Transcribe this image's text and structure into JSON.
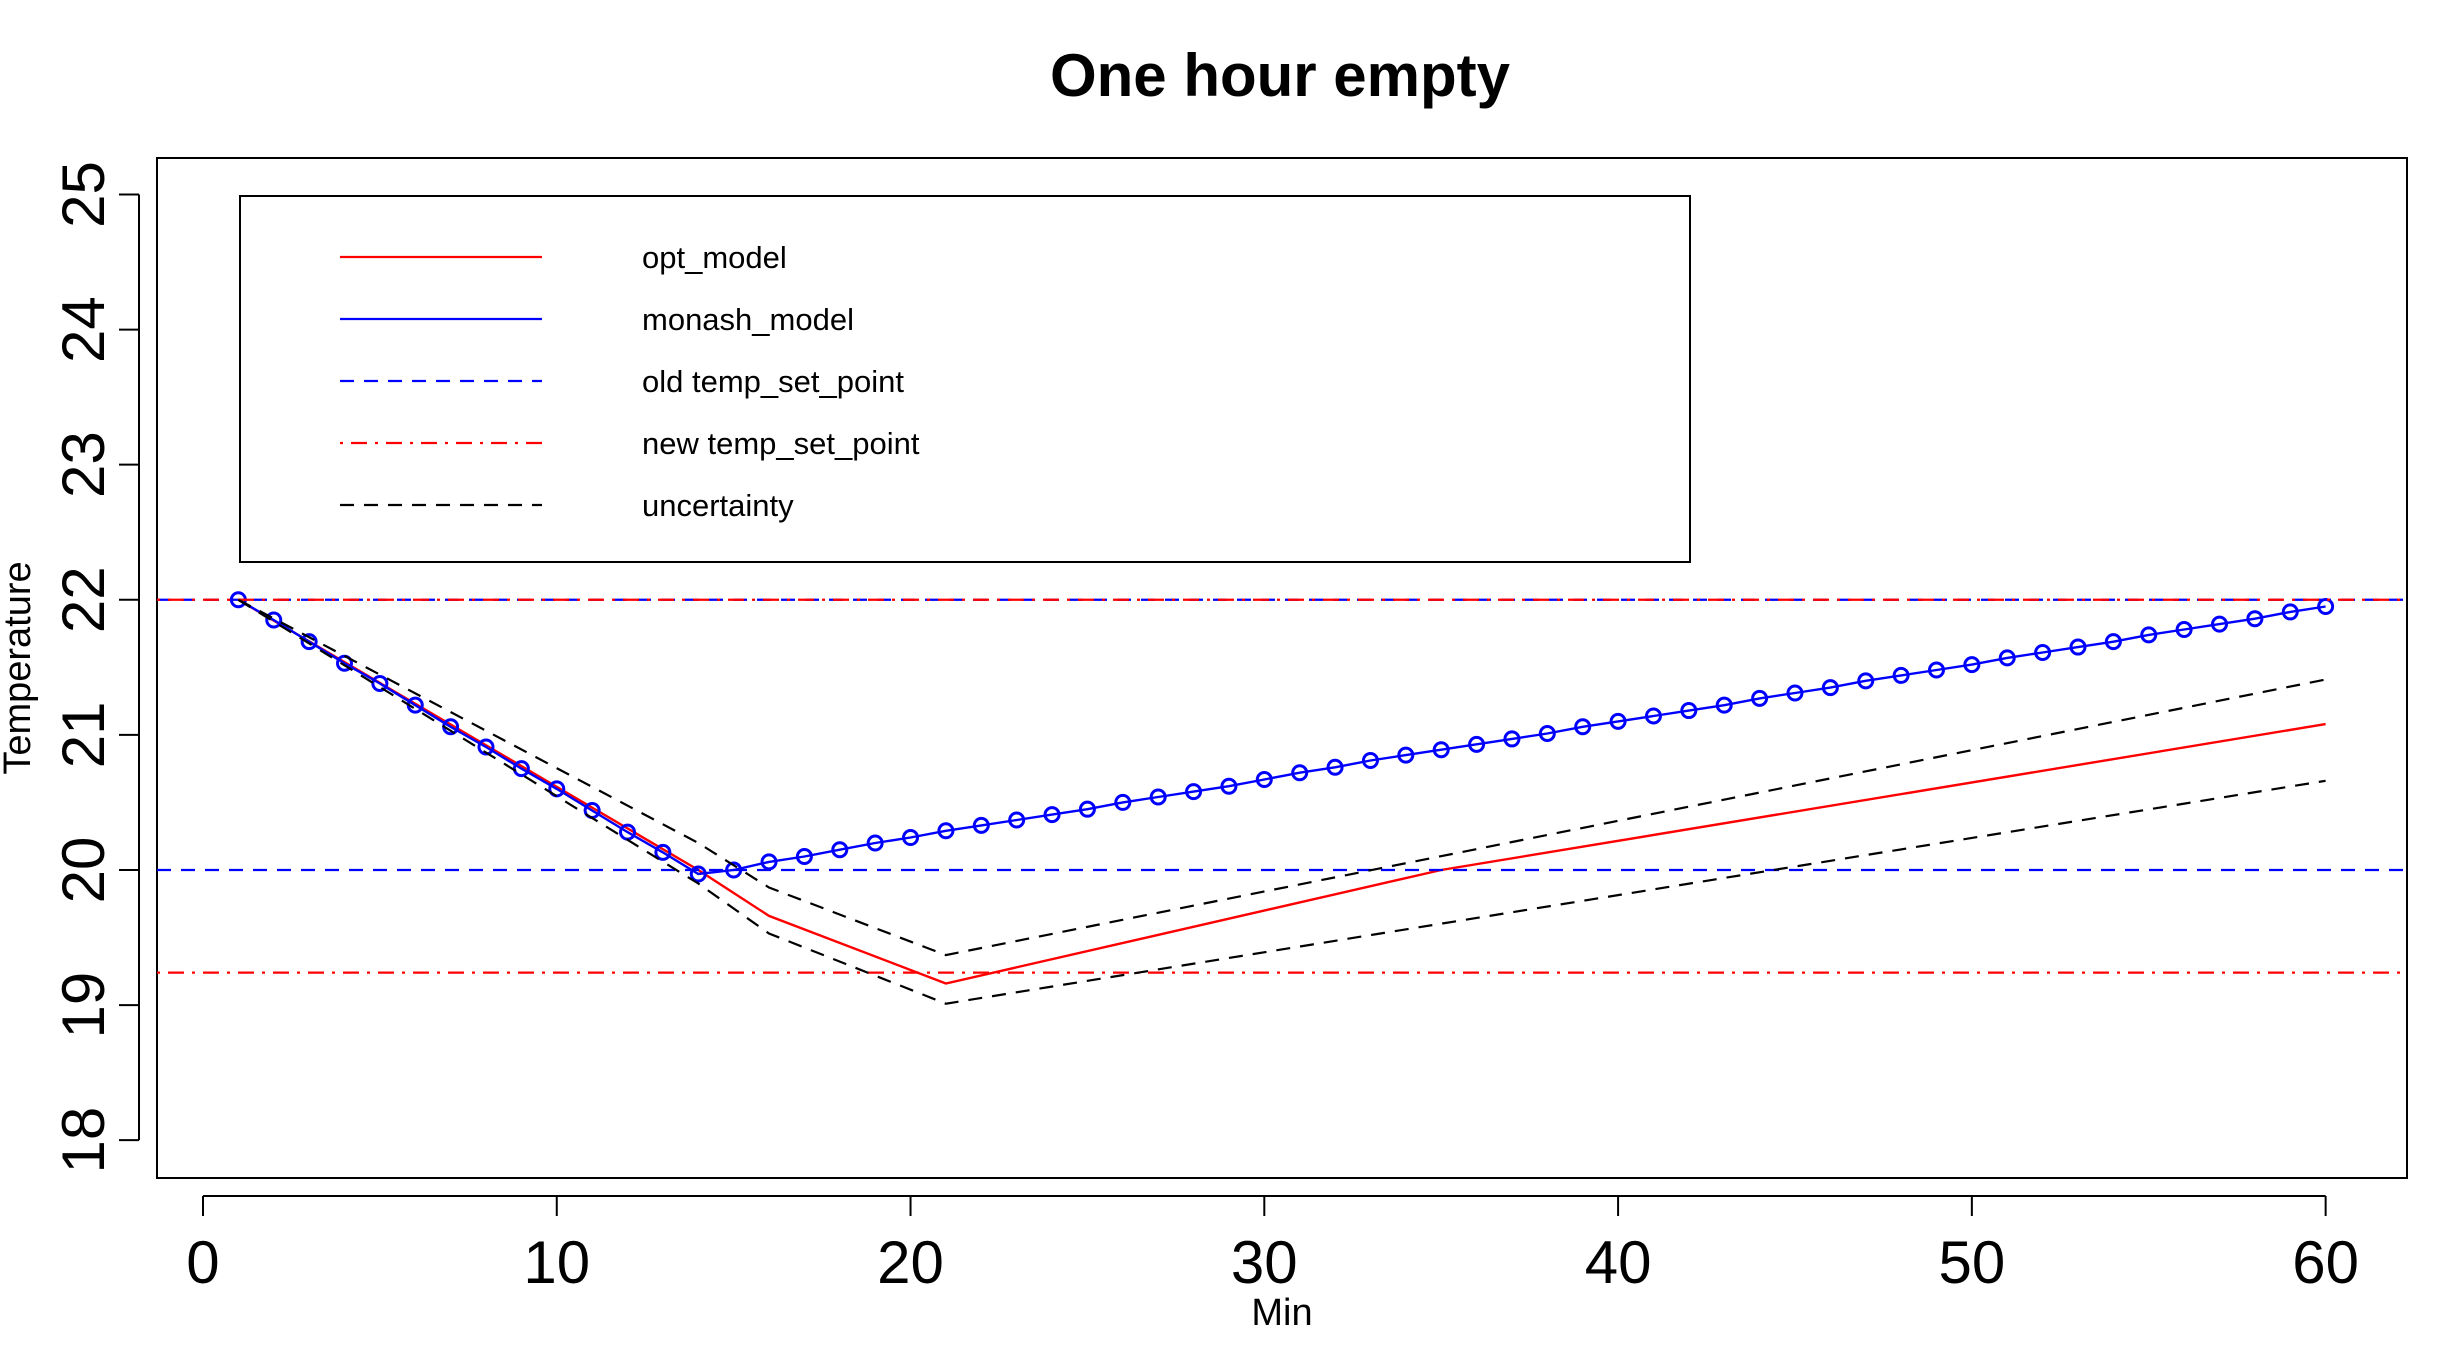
{
  "chart_data": {
    "type": "line",
    "title": "One hour empty",
    "xlabel": "Min",
    "ylabel": "Temperature",
    "xlim": [
      -1.3,
      62.3
    ],
    "ylim": [
      17.72,
      25.27
    ],
    "xticks": [
      "0",
      "10",
      "20",
      "30",
      "40",
      "50",
      "60"
    ],
    "yticks": [
      "18",
      "19",
      "20",
      "21",
      "22",
      "23",
      "24",
      "25"
    ],
    "legend_position": "top-left",
    "series": [
      {
        "name": "opt_model",
        "color": "#ff0000",
        "style": "solid",
        "x": [
          1,
          14,
          16,
          21,
          35,
          60
        ],
        "y": [
          22.0,
          20.0,
          19.66,
          19.16,
          20.0,
          21.08
        ]
      },
      {
        "name": "monash_model",
        "color": "#0000ff",
        "style": "solid-markers",
        "x": [
          1,
          2,
          3,
          4,
          5,
          6,
          7,
          8,
          9,
          10,
          11,
          12,
          13,
          14,
          15,
          16,
          17,
          18,
          19,
          20,
          21,
          22,
          23,
          24,
          25,
          26,
          27,
          28,
          29,
          30,
          31,
          32,
          33,
          34,
          35,
          36,
          37,
          38,
          39,
          40,
          41,
          42,
          43,
          44,
          45,
          46,
          47,
          48,
          49,
          50,
          51,
          52,
          53,
          54,
          55,
          56,
          57,
          58,
          59,
          60
        ],
        "y": [
          22.0,
          21.85,
          21.69,
          21.53,
          21.38,
          21.22,
          21.06,
          20.91,
          20.75,
          20.6,
          20.44,
          20.28,
          20.13,
          19.97,
          20.0,
          20.06,
          20.1,
          20.15,
          20.2,
          20.24,
          20.29,
          20.33,
          20.37,
          20.41,
          20.45,
          20.5,
          20.54,
          20.58,
          20.62,
          20.67,
          20.72,
          20.76,
          20.81,
          20.85,
          20.89,
          20.93,
          20.97,
          21.01,
          21.06,
          21.1,
          21.14,
          21.18,
          21.22,
          21.27,
          21.31,
          21.35,
          21.4,
          21.44,
          21.48,
          21.52,
          21.57,
          21.61,
          21.65,
          21.69,
          21.74,
          21.78,
          21.82,
          21.86,
          21.91,
          21.95
        ]
      },
      {
        "name": "old temp_set_point",
        "color": "#0000ff",
        "style": "dashed",
        "hlines": [
          22.0,
          20.0
        ]
      },
      {
        "name": "new temp_set_point",
        "color": "#ff0000",
        "style": "dotdash",
        "hlines": [
          22.0,
          19.24
        ]
      },
      {
        "name": "uncertainty",
        "color": "#000000",
        "style": "dashed",
        "lines": [
          {
            "x": [
              1,
              14,
              16,
              21,
              60
            ],
            "y": [
              22.0,
              20.2,
              19.87,
              19.37,
              21.41
            ]
          },
          {
            "x": [
              1,
              14,
              16,
              21,
              60
            ],
            "y": [
              22.0,
              19.9,
              19.53,
              19.01,
              20.66
            ]
          }
        ]
      }
    ]
  }
}
